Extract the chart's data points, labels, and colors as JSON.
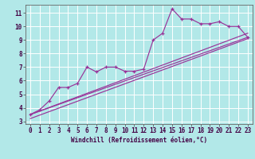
{
  "xlabel": "Windchill (Refroidissement éolien,°C)",
  "bg_color": "#b2e8e8",
  "grid_color": "#ffffff",
  "line_color": "#993399",
  "xlim": [
    -0.5,
    23.5
  ],
  "ylim": [
    2.8,
    11.6
  ],
  "xticks": [
    0,
    1,
    2,
    3,
    4,
    5,
    6,
    7,
    8,
    9,
    10,
    11,
    12,
    13,
    14,
    15,
    16,
    17,
    18,
    19,
    20,
    21,
    22,
    23
  ],
  "yticks": [
    3,
    4,
    5,
    6,
    7,
    8,
    9,
    10,
    11
  ],
  "data_x": [
    0,
    1,
    2,
    3,
    4,
    5,
    6,
    7,
    8,
    9,
    10,
    11,
    12,
    13,
    14,
    15,
    16,
    17,
    18,
    19,
    20,
    21,
    22,
    23
  ],
  "data_y": [
    3.5,
    3.85,
    4.5,
    5.5,
    5.5,
    5.8,
    7.0,
    6.65,
    7.0,
    7.0,
    6.7,
    6.7,
    6.85,
    9.0,
    9.5,
    11.3,
    10.55,
    10.55,
    10.2,
    10.2,
    10.35,
    10.0,
    10.0,
    9.2
  ],
  "trend1_x": [
    0,
    23
  ],
  "trend1_y": [
    3.5,
    9.2
  ],
  "trend2_x": [
    0,
    23
  ],
  "trend2_y": [
    3.5,
    9.5
  ],
  "trend3_x": [
    0,
    23
  ],
  "trend3_y": [
    3.2,
    9.1
  ]
}
